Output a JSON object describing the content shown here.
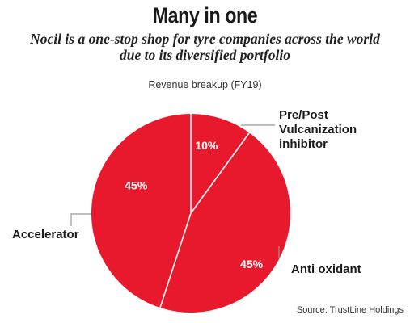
{
  "header": {
    "title": "Many in one",
    "subtitle_line1": "Nocil is a one-stop shop for tyre companies across the world",
    "subtitle_line2": "due to its diversified portfolio"
  },
  "caption": "Revenue breakup (FY19)",
  "source": "Source: TrustLine Holdings",
  "colors": {
    "slice": "#e8192c",
    "divider": "#ffffff",
    "leader": "#999999"
  },
  "chart_data": {
    "type": "pie",
    "title": "Revenue breakup (FY19)",
    "slices": [
      {
        "label": "Pre/Post Vulcanization inhibitor",
        "label_lines": [
          "Pre/Post",
          "Vulcanization",
          "inhibitor"
        ],
        "value": 10,
        "display": "10%"
      },
      {
        "label": "Anti oxidant",
        "label_lines": [
          "Anti oxidant"
        ],
        "value": 45,
        "display": "45%"
      },
      {
        "label": "Accelerator",
        "label_lines": [
          "Accelerator"
        ],
        "value": 45,
        "display": "45%"
      }
    ]
  }
}
